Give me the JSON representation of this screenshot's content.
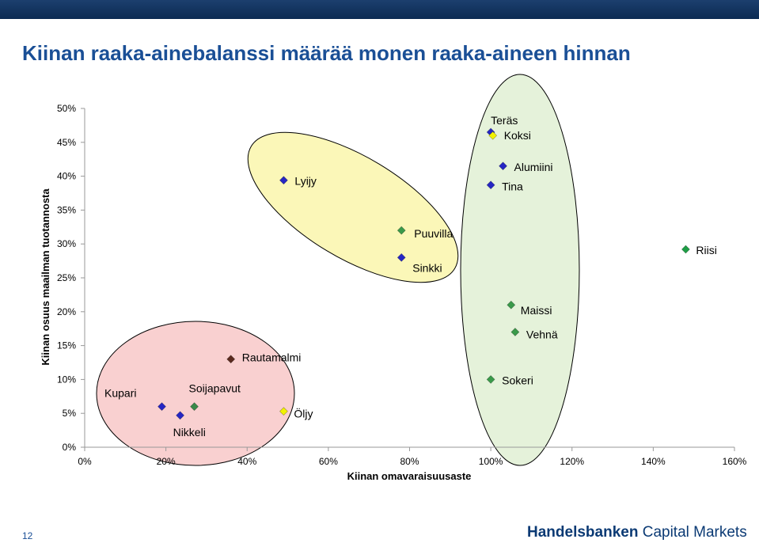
{
  "slide": {
    "title": "Kiinan raaka-ainebalanssi määrää monen raaka-aineen hinnan",
    "page_number": "12",
    "brand_bold": "Handelsbanken",
    "brand_rest": " Capital Markets",
    "colors": {
      "title": "#1a4f96",
      "topbar": "#0b2a52",
      "brand": "#0b3a74"
    }
  },
  "chart_data": {
    "type": "scatter",
    "title": "",
    "xlabel": "Kiinan omavaraisuusaste",
    "ylabel": "Kiinan osuus maailman tuotannosta",
    "xlim": [
      0,
      160
    ],
    "ylim": [
      0,
      50
    ],
    "x_ticks": [
      "0%",
      "20%",
      "40%",
      "60%",
      "80%",
      "100%",
      "120%",
      "140%",
      "160%"
    ],
    "y_ticks": [
      "0%",
      "5%",
      "10%",
      "15%",
      "20%",
      "25%",
      "30%",
      "35%",
      "40%",
      "45%",
      "50%"
    ],
    "grid": false,
    "points": [
      {
        "name": "Teräs",
        "x": 100,
        "y": 46.5,
        "color": "#2626c4"
      },
      {
        "name": "Koksi",
        "x": 100.5,
        "y": 46,
        "color": "#f2f200"
      },
      {
        "name": "Alumiini",
        "x": 103,
        "y": 41.5,
        "color": "#2626c4"
      },
      {
        "name": "Tina",
        "x": 100,
        "y": 38.7,
        "color": "#2626c4"
      },
      {
        "name": "Lyijy",
        "x": 49,
        "y": 39.4,
        "color": "#2626c4"
      },
      {
        "name": "Puuvilla",
        "x": 78,
        "y": 32,
        "color": "#3a9a4a"
      },
      {
        "name": "Sinkki",
        "x": 78,
        "y": 28,
        "color": "#2626c4"
      },
      {
        "name": "Riisi",
        "x": 148,
        "y": 29.2,
        "color": "#1e9e46"
      },
      {
        "name": "Maissi",
        "x": 105,
        "y": 21,
        "color": "#3a9a4a"
      },
      {
        "name": "Vehnä",
        "x": 106,
        "y": 17,
        "color": "#3a9a4a"
      },
      {
        "name": "Sokeri",
        "x": 100,
        "y": 10,
        "color": "#3a9a4a"
      },
      {
        "name": "Rautamalmi",
        "x": 36,
        "y": 13,
        "color": "#5a2a1e"
      },
      {
        "name": "Kupari",
        "x": 19,
        "y": 6,
        "color": "#2626c4"
      },
      {
        "name": "Nikkeli",
        "x": 23.5,
        "y": 4.7,
        "color": "#2626c4"
      },
      {
        "name": "Soijapavut",
        "x": 27,
        "y": 6,
        "color": "#3a8a4a"
      },
      {
        "name": "Öljy",
        "x": 49,
        "y": 5.3,
        "color": "#f2f200"
      }
    ],
    "groups": [
      {
        "name": "red",
        "fill": "#f9d0d0"
      },
      {
        "name": "yellow",
        "fill": "#fbf7b8"
      },
      {
        "name": "green",
        "fill": "#e5f2da"
      }
    ]
  }
}
